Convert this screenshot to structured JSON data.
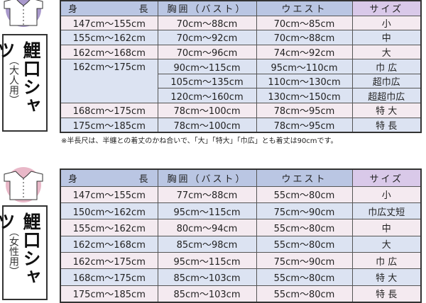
{
  "adult": {
    "label": "鯉口シャツ",
    "sublabel": "（大人用）",
    "icon": "shirt-icon",
    "icon_color": "#a999cc",
    "headers": [
      "身",
      "長",
      "胸囲（バスト）",
      "ウエスト",
      "サイズ"
    ],
    "rows": [
      {
        "height": "147cm～155cm",
        "bust": "70cm～88cm",
        "waist": "70cm～85cm",
        "size": "小"
      },
      {
        "height": "155cm～162cm",
        "bust": "70cm～92cm",
        "waist": "70cm～88cm",
        "size": "中"
      },
      {
        "height": "162cm～168cm",
        "bust": "70cm～96cm",
        "waist": "74cm～92cm",
        "size": "大"
      },
      {
        "height": "162cm～175cm",
        "bust": "90cm～115cm",
        "waist": "95cm～110cm",
        "size": "巾 広"
      },
      {
        "height": "",
        "bust": "105cm～135cm",
        "waist": "110cm～130cm",
        "size": "超巾広"
      },
      {
        "height": "",
        "bust": "120cm～160cm",
        "waist": "130cm～150cm",
        "size": "超超巾広"
      },
      {
        "height": "168cm～175cm",
        "bust": "78cm～100cm",
        "waist": "78cm～95cm",
        "size": "特 大"
      },
      {
        "height": "175cm～185cm",
        "bust": "78cm～100cm",
        "waist": "78cm～95cm",
        "size": "特 長"
      }
    ],
    "note": "※半長尺は、半纏との着丈のかね合いで、「大」「特大」「巾広」とも着丈は90cmです。"
  },
  "women": {
    "label": "鯉口シャツ",
    "sublabel": "（女性用）",
    "icon": "shirt-icon",
    "icon_color": "#e9b8c8",
    "headers": [
      "身",
      "長",
      "胸囲（バスト）",
      "ウエスト",
      "サイズ"
    ],
    "rows": [
      {
        "height": "147cm～155cm",
        "bust": "77cm～88cm",
        "waist": "55cm～80cm",
        "size": "小"
      },
      {
        "height": "150cm～162cm",
        "bust": "95cm～115cm",
        "waist": "75cm～90cm",
        "size": "巾広丈短"
      },
      {
        "height": "155cm～162cm",
        "bust": "80cm～94cm",
        "waist": "55cm～80cm",
        "size": "中"
      },
      {
        "height": "162cm～168cm",
        "bust": "85cm～98cm",
        "waist": "55cm～80cm",
        "size": "大"
      },
      {
        "height": "162cm～175cm",
        "bust": "95cm～115cm",
        "waist": "75cm～90cm",
        "size": "巾 広"
      },
      {
        "height": "168cm～175cm",
        "bust": "85cm～103cm",
        "waist": "55cm～80cm",
        "size": "特 大"
      },
      {
        "height": "175cm～185cm",
        "bust": "85cm～103cm",
        "waist": "55cm～80cm",
        "size": "特 長"
      }
    ]
  }
}
